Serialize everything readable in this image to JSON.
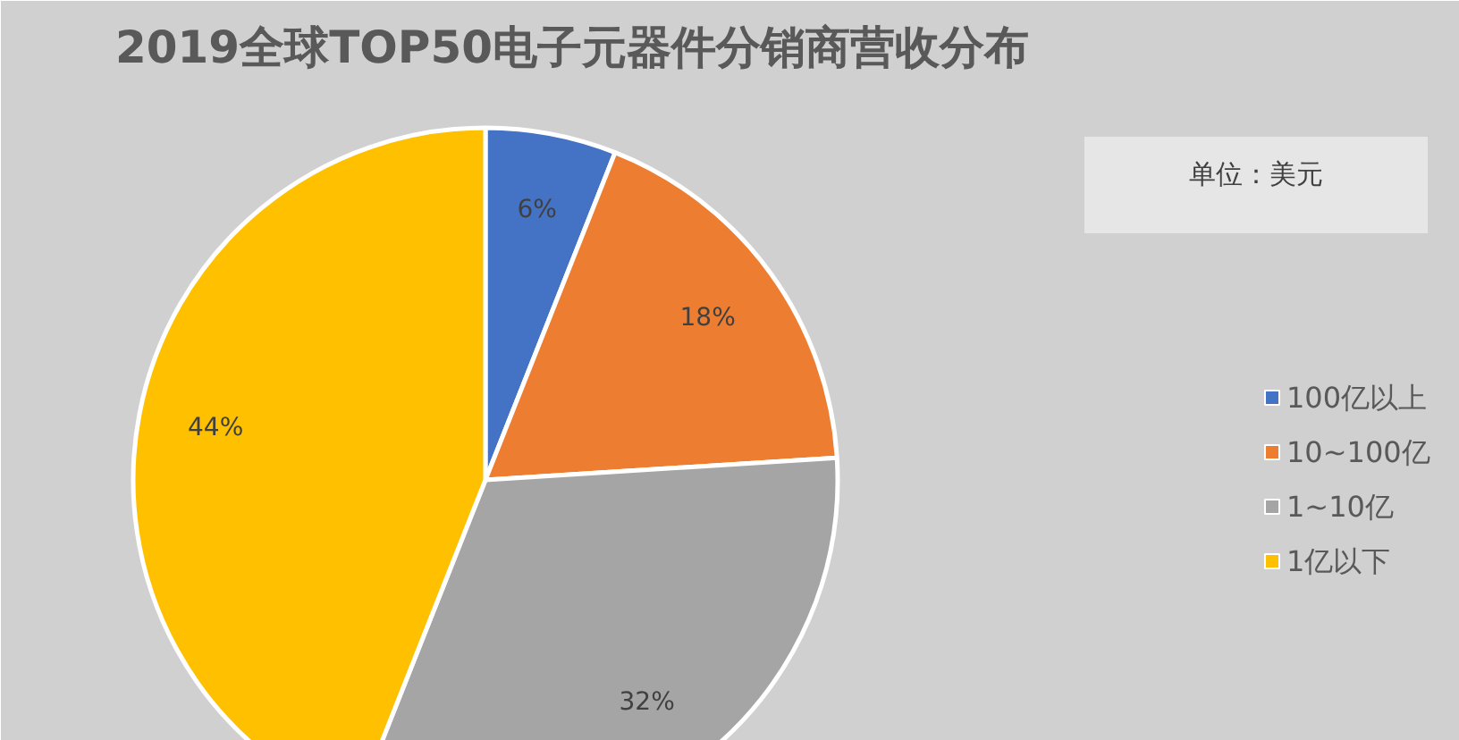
{
  "chart_data": {
    "type": "pie",
    "title": "2019全球TOP50电子元器件分销商营收分布",
    "categories": [
      "100亿以上",
      "10~100亿",
      "1~10亿",
      "1亿以下"
    ],
    "values": [
      6,
      18,
      32,
      44
    ],
    "colors": [
      "#4472c4",
      "#ed7d31",
      "#a5a5a5",
      "#ffc000"
    ],
    "value_labels": [
      "6%",
      "18%",
      "32%",
      "44%"
    ],
    "legend": "right",
    "annotations": [
      "单位：美元"
    ]
  }
}
